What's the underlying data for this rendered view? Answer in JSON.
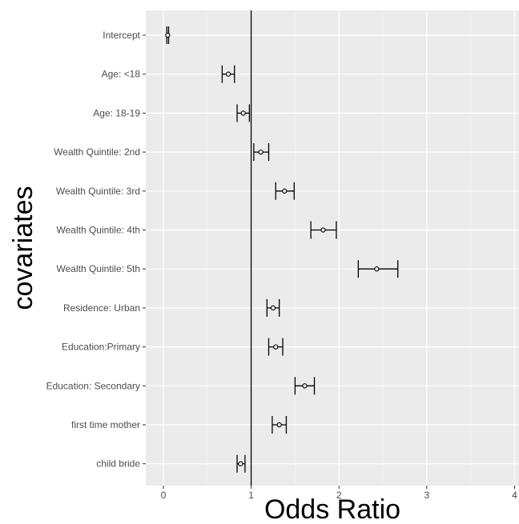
{
  "chart_data": {
    "type": "forest",
    "title": "",
    "xlabel": "Odds Ratio",
    "ylabel": "covariates",
    "xlim": [
      -0.2,
      4.05
    ],
    "xticks": [
      0,
      1,
      2,
      3,
      4
    ],
    "reference_line": 1,
    "grid": true,
    "categories": [
      "Intercept",
      "Age: <18",
      "Age: 18-19",
      "Wealth Quintile: 2nd",
      "Wealth Quintile: 3rd",
      "Wealth Quintile: 4th",
      "Wealth Quintile: 5th",
      "Residence: Urban",
      "Education:Primary",
      "Education: Secondary",
      "first time mother",
      "child bride"
    ],
    "estimates": [
      0.05,
      0.74,
      0.91,
      1.11,
      1.38,
      1.82,
      2.43,
      1.25,
      1.28,
      1.61,
      1.32,
      0.88
    ],
    "ci_lower": [
      0.04,
      0.67,
      0.84,
      1.03,
      1.28,
      1.68,
      2.22,
      1.18,
      1.2,
      1.5,
      1.24,
      0.84
    ],
    "ci_upper": [
      0.06,
      0.81,
      0.98,
      1.2,
      1.49,
      1.97,
      2.67,
      1.32,
      1.36,
      1.72,
      1.4,
      0.93
    ]
  },
  "colors": {
    "panel_background": "#ebebeb",
    "grid_major": "#ffffff",
    "ink": "#000000",
    "tick_text": "#4d4d4d"
  }
}
